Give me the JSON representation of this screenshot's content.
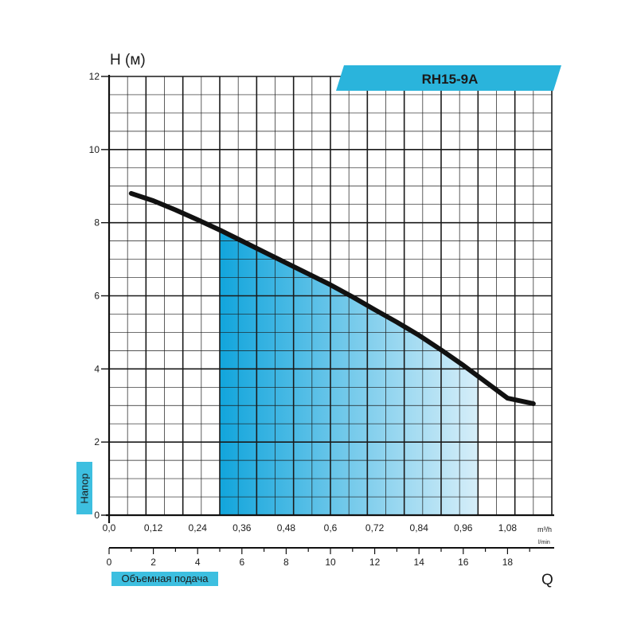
{
  "chart_data": {
    "type": "line",
    "title": "RH15-9A",
    "ylabel": "Напор",
    "y_axis_symbol": "H (м)",
    "xlabel": "Объемная подача",
    "x_axis_symbol": "Q",
    "ylim": [
      0,
      12
    ],
    "y_ticks": [
      "0",
      "2",
      "4",
      "6",
      "8",
      "10",
      "12"
    ],
    "xlim_m3h": [
      0,
      1.2
    ],
    "x_ticks_m3h": [
      "0,0",
      "0,12",
      "0,24",
      "0,36",
      "0,48",
      "0,6",
      "0,72",
      "0,84",
      "0,96",
      "1,08"
    ],
    "x_unit_m3h": "m³/h",
    "xlim_lmin": [
      0,
      20
    ],
    "x_ticks_lmin": [
      "0",
      "2",
      "4",
      "6",
      "8",
      "10",
      "12",
      "14",
      "16",
      "18"
    ],
    "x_unit_lmin": "l/min",
    "grid": true,
    "series": [
      {
        "x": [
          0.06,
          0.12,
          0.18,
          0.24,
          0.3,
          0.36,
          0.42,
          0.48,
          0.54,
          0.6,
          0.66,
          0.72,
          0.78,
          0.84,
          0.9,
          0.96,
          1.02,
          1.08,
          1.15
        ],
        "values": [
          8.8,
          8.6,
          8.35,
          8.08,
          7.8,
          7.5,
          7.2,
          6.9,
          6.6,
          6.3,
          5.97,
          5.62,
          5.28,
          4.92,
          4.52,
          4.1,
          3.65,
          3.2,
          3.05
        ]
      }
    ],
    "working_range_m3h": [
      0.3,
      1.0
    ],
    "colors": {
      "curve": "#111111",
      "fill_start": "#12a5dc",
      "fill_end": "#d6eef9",
      "banner": "#2ab4dc",
      "grid": "#1a1a1a"
    }
  }
}
